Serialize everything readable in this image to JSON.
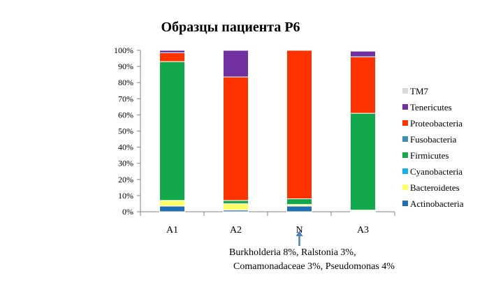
{
  "chart_data": {
    "type": "bar",
    "stacked": true,
    "title": "Образцы пациента P6",
    "categories": [
      "A1",
      "A2",
      "N",
      "A3"
    ],
    "ylim": [
      0,
      100
    ],
    "y_ticks": [
      "0%",
      "10%",
      "20%",
      "30%",
      "40%",
      "50%",
      "60%",
      "70%",
      "80%",
      "90%",
      "100%"
    ],
    "grid": false,
    "legend_position": "right",
    "series": [
      {
        "name": "Actinobacteria",
        "color": "#1f6fb5",
        "values": [
          3.5,
          1,
          3.5,
          0.5
        ]
      },
      {
        "name": "Bacteroidetes",
        "color": "#ffff66",
        "values": [
          3.5,
          4,
          1,
          0.5
        ]
      },
      {
        "name": "Cyanobacteria",
        "color": "#11b3e8",
        "values": [
          0,
          0,
          0,
          0
        ]
      },
      {
        "name": "Firmicutes",
        "color": "#12a84b",
        "values": [
          86,
          2,
          3.5,
          60
        ]
      },
      {
        "name": "Fusobacteria",
        "color": "#3a8fb7",
        "values": [
          0,
          0,
          0,
          0
        ]
      },
      {
        "name": "Proteobacteria",
        "color": "#ff3300",
        "values": [
          5.5,
          76.5,
          92,
          35
        ]
      },
      {
        "name": "Tenericutes",
        "color": "#7030a0",
        "values": [
          1.5,
          16.5,
          0,
          3.5
        ]
      },
      {
        "name": "TM7",
        "color": "#d9d9d9",
        "values": [
          0,
          0,
          0,
          0
        ]
      }
    ]
  },
  "annotation": {
    "line1": "Burkholderia 8%, Ralstonia 3%,",
    "line2": "Comamonadaceae 3%, Pseudomonas 4%",
    "target_category": "N"
  }
}
